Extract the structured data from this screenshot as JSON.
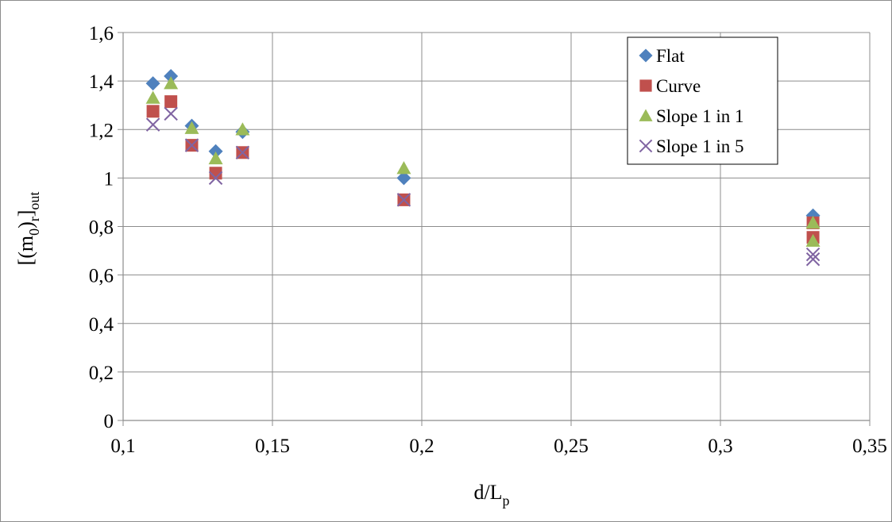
{
  "chart_data": {
    "type": "scatter",
    "title": "",
    "xlabel": {
      "base": "d/L",
      "sub": "p"
    },
    "ylabel": {
      "p1": "[(m",
      "s1": "0",
      "p2": ")",
      "s2": "r",
      "p3": "]",
      "s3": "out"
    },
    "xlim": [
      0.1,
      0.35
    ],
    "ylim": [
      0,
      1.6
    ],
    "x_ticks": [
      {
        "value": 0.1,
        "label": "0,1"
      },
      {
        "value": 0.15,
        "label": "0,15"
      },
      {
        "value": 0.2,
        "label": "0,2"
      },
      {
        "value": 0.25,
        "label": "0,25"
      },
      {
        "value": 0.3,
        "label": "0,3"
      },
      {
        "value": 0.35,
        "label": "0,35"
      }
    ],
    "y_ticks": [
      {
        "value": 0,
        "label": "0"
      },
      {
        "value": 0.2,
        "label": "0,2"
      },
      {
        "value": 0.4,
        "label": "0,4"
      },
      {
        "value": 0.6,
        "label": "0,6"
      },
      {
        "value": 0.8,
        "label": "0,8"
      },
      {
        "value": 1.0,
        "label": "1"
      },
      {
        "value": 1.2,
        "label": "1,2"
      },
      {
        "value": 1.4,
        "label": "1,4"
      },
      {
        "value": 1.6,
        "label": "1,6"
      }
    ],
    "grid": true,
    "legend_position": "top-right",
    "series": [
      {
        "name": "Flat",
        "marker": "diamond",
        "color": "#4F81BD",
        "points": [
          {
            "x": 0.11,
            "y": 1.39
          },
          {
            "x": 0.116,
            "y": 1.42
          },
          {
            "x": 0.123,
            "y": 1.215
          },
          {
            "x": 0.131,
            "y": 1.11
          },
          {
            "x": 0.14,
            "y": 1.19
          },
          {
            "x": 0.194,
            "y": 1.0
          },
          {
            "x": 0.331,
            "y": 0.845
          }
        ]
      },
      {
        "name": "Curve",
        "marker": "square",
        "color": "#C0504D",
        "points": [
          {
            "x": 0.11,
            "y": 1.275
          },
          {
            "x": 0.116,
            "y": 1.315
          },
          {
            "x": 0.123,
            "y": 1.135
          },
          {
            "x": 0.131,
            "y": 1.02
          },
          {
            "x": 0.14,
            "y": 1.105
          },
          {
            "x": 0.194,
            "y": 0.91
          },
          {
            "x": 0.331,
            "y": 0.815
          },
          {
            "x": 0.331,
            "y": 0.755
          }
        ]
      },
      {
        "name": "Slope 1 in 1",
        "marker": "triangle",
        "color": "#9BBB59",
        "points": [
          {
            "x": 0.11,
            "y": 1.33
          },
          {
            "x": 0.116,
            "y": 1.39
          },
          {
            "x": 0.123,
            "y": 1.205
          },
          {
            "x": 0.131,
            "y": 1.08
          },
          {
            "x": 0.14,
            "y": 1.2
          },
          {
            "x": 0.194,
            "y": 1.04
          },
          {
            "x": 0.331,
            "y": 0.815
          },
          {
            "x": 0.331,
            "y": 0.74
          }
        ]
      },
      {
        "name": "Slope 1 in 5",
        "marker": "x",
        "color": "#8064A2",
        "points": [
          {
            "x": 0.11,
            "y": 1.22
          },
          {
            "x": 0.116,
            "y": 1.265
          },
          {
            "x": 0.123,
            "y": 1.135
          },
          {
            "x": 0.131,
            "y": 1.0
          },
          {
            "x": 0.14,
            "y": 1.105
          },
          {
            "x": 0.194,
            "y": 0.91
          },
          {
            "x": 0.331,
            "y": 0.685
          },
          {
            "x": 0.331,
            "y": 0.665
          }
        ]
      }
    ]
  }
}
